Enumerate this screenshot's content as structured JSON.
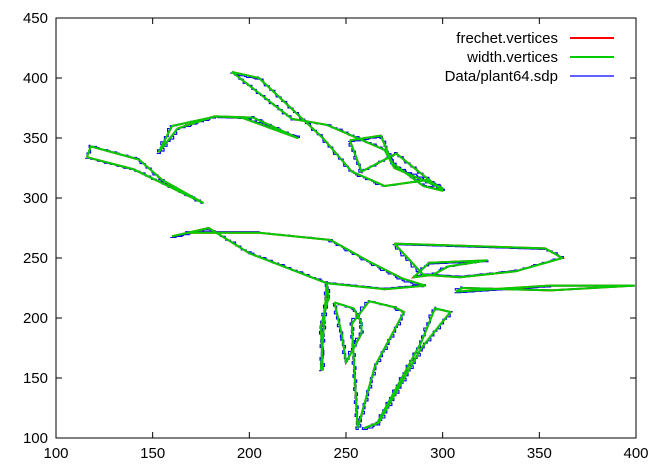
{
  "chart_data": {
    "type": "line",
    "title": "",
    "xlabel": "",
    "ylabel": "",
    "xlim": [
      100,
      400
    ],
    "ylim": [
      100,
      450
    ],
    "x_ticks": [
      100,
      150,
      200,
      250,
      300,
      350,
      400
    ],
    "y_ticks": [
      100,
      150,
      200,
      250,
      300,
      350,
      400,
      450
    ],
    "grid": false,
    "legend_position": "top-right",
    "series": [
      {
        "name": "frechet.vertices",
        "color": "#ff0000",
        "style": "hidden-under-green",
        "points": [
          [
            116,
            343
          ],
          [
            140,
            327
          ],
          [
            178,
            297
          ],
          [
            140,
            327
          ],
          [
            116,
            343
          ]
        ]
      },
      {
        "name": "width.vertices",
        "color": "#00cc00",
        "style": "outline",
        "points": [
          [
            116,
            334
          ],
          [
            140,
            324
          ],
          [
            176,
            296
          ],
          [
            155,
            315
          ],
          [
            143,
            332
          ],
          [
            118,
            343
          ],
          [
            116,
            334
          ]
        ],
        "extra_shapes": [
          [
            [
              153,
              338
            ],
            [
              163,
              358
            ],
            [
              182,
              368
            ],
            [
              196,
              367
            ],
            [
              225,
              350
            ],
            [
              202,
              367
            ],
            [
              183,
              368
            ],
            [
              160,
              360
            ],
            [
              153,
              338
            ]
          ],
          [
            [
              191,
              405
            ],
            [
              222,
              366
            ],
            [
              240,
              361
            ],
            [
              270,
              340
            ],
            [
              275,
              325
            ],
            [
              300,
              308
            ],
            [
              292,
              315
            ],
            [
              270,
              310
            ],
            [
              253,
              322
            ],
            [
              238,
              350
            ],
            [
              205,
              400
            ],
            [
              191,
              405
            ]
          ],
          [
            [
              252,
              348
            ],
            [
              268,
              352
            ],
            [
              274,
              329
            ],
            [
              290,
              310
            ],
            [
              300,
              306
            ],
            [
              276,
              337
            ],
            [
              258,
              322
            ],
            [
              252,
              348
            ]
          ],
          [
            [
              160,
              268
            ],
            [
              179,
              275
            ],
            [
              200,
              254
            ],
            [
              240,
              229
            ],
            [
              270,
              224
            ],
            [
              291,
              227
            ],
            [
              279,
              233
            ],
            [
              262,
              247
            ],
            [
              242,
              265
            ],
            [
              205,
              271
            ],
            [
              168,
              271
            ],
            [
              160,
              268
            ]
          ],
          [
            [
              275,
              262
            ],
            [
              353,
              258
            ],
            [
              362,
              250
            ],
            [
              338,
              239
            ],
            [
              309,
              234
            ],
            [
              290,
              236
            ],
            [
              275,
              262
            ]
          ],
          [
            [
              293,
              246
            ],
            [
              323,
              248
            ],
            [
              303,
              243
            ],
            [
              295,
              236
            ],
            [
              285,
              234
            ],
            [
              293,
              246
            ]
          ],
          [
            [
              307,
              222
            ],
            [
              355,
              227
            ],
            [
              399,
              227
            ],
            [
              356,
              223
            ],
            [
              310,
              225
            ],
            [
              307,
              222
            ]
          ],
          [
            [
              237,
              157
            ],
            [
              240,
              229
            ],
            [
              241,
              217
            ],
            [
              237,
              193
            ],
            [
              238,
              157
            ],
            [
              237,
              157
            ]
          ],
          [
            [
              256,
              108
            ],
            [
              265,
              160
            ],
            [
              280,
              205
            ],
            [
              275,
              209
            ],
            [
              262,
              214
            ],
            [
              253,
              195
            ],
            [
              256,
              108
            ]
          ],
          [
            [
              244,
              213
            ],
            [
              254,
              208
            ],
            [
              258,
              196
            ],
            [
              258,
              187
            ],
            [
              250,
              163
            ],
            [
              248,
              185
            ],
            [
              244,
              213
            ]
          ],
          [
            [
              259,
              108
            ],
            [
              267,
              113
            ],
            [
              289,
              175
            ],
            [
              304,
              205
            ],
            [
              296,
              208
            ],
            [
              289,
              180
            ],
            [
              266,
              112
            ],
            [
              259,
              108
            ]
          ]
        ]
      },
      {
        "name": "Data/plant64.sdp",
        "color": "#0000ff",
        "style": "staircase-outline"
      }
    ]
  }
}
